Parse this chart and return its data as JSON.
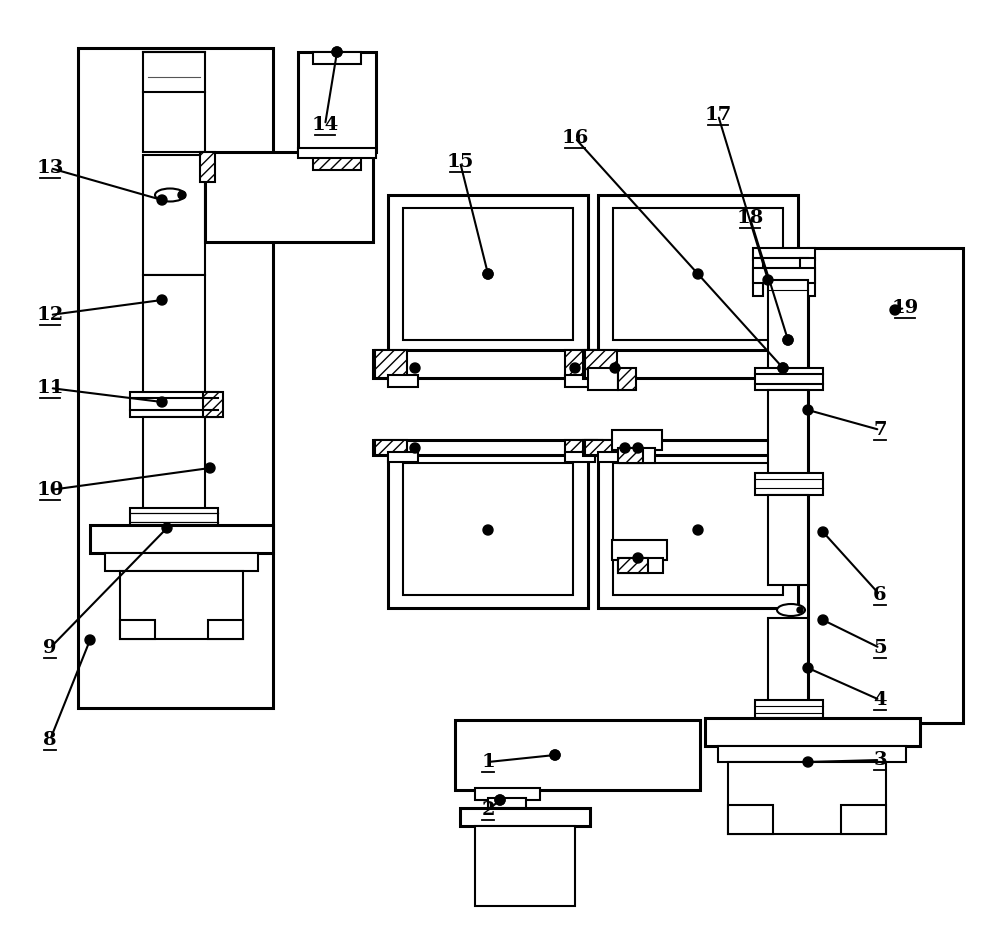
{
  "bg_color": "#ffffff",
  "lc": "#000000",
  "lw": 1.5,
  "lw2": 2.2,
  "figsize": [
    10.0,
    9.41
  ],
  "dpi": 100,
  "labels": [
    [
      "1",
      488,
      762
    ],
    [
      "2",
      488,
      810
    ],
    [
      "3",
      880,
      760
    ],
    [
      "4",
      880,
      700
    ],
    [
      "5",
      880,
      648
    ],
    [
      "6",
      880,
      595
    ],
    [
      "7",
      880,
      430
    ],
    [
      "8",
      50,
      740
    ],
    [
      "9",
      50,
      648
    ],
    [
      "10",
      50,
      490
    ],
    [
      "11",
      50,
      388
    ],
    [
      "12",
      50,
      315
    ],
    [
      "13",
      50,
      168
    ],
    [
      "14",
      325,
      125
    ],
    [
      "15",
      460,
      162
    ],
    [
      "16",
      575,
      138
    ],
    [
      "17",
      718,
      115
    ],
    [
      "18",
      750,
      218
    ],
    [
      "19",
      905,
      308
    ]
  ]
}
